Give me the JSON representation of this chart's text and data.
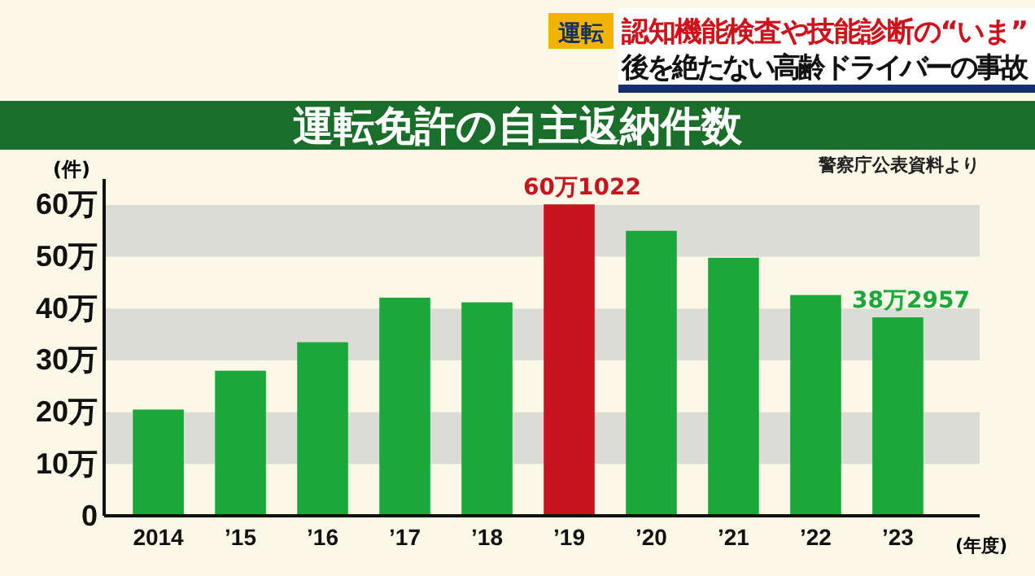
{
  "chart_data": {
    "type": "bar",
    "title": "運転免許の自主返納件数",
    "categories": [
      "2014",
      "’15",
      "’16",
      "’17",
      "’18",
      "’19",
      "’20",
      "’21",
      "’22",
      "’23"
    ],
    "values": [
      20.5,
      28.0,
      33.5,
      42.1,
      41.2,
      60.1022,
      55.0,
      49.8,
      42.6,
      38.2957
    ],
    "colors": [
      "#1aa83a",
      "#1aa83a",
      "#1aa83a",
      "#1aa83a",
      "#1aa83a",
      "#c8141e",
      "#1aa83a",
      "#1aa83a",
      "#1aa83a",
      "#1aa83a"
    ],
    "value_labels": [
      null,
      null,
      null,
      null,
      null,
      "60万1022",
      null,
      null,
      null,
      "38万2957"
    ],
    "ylim": [
      0,
      65
    ],
    "yticks": [
      0,
      {
        "value": 10,
        "label": "10万"
      },
      {
        "value": 20,
        "label": "20万"
      },
      {
        "value": 30,
        "label": "30万"
      },
      {
        "value": 40,
        "label": "40万"
      },
      {
        "value": 50,
        "label": "50万"
      },
      {
        "value": 60,
        "label": "60万"
      }
    ],
    "ylabel": "(件)",
    "xlabel": "(年度)",
    "annotations": [
      "警察庁公表資料より",
      "運転",
      "認知機能検査や技能診断の“いま”",
      "後を絶たない高齢ドライバーの事故"
    ]
  }
}
